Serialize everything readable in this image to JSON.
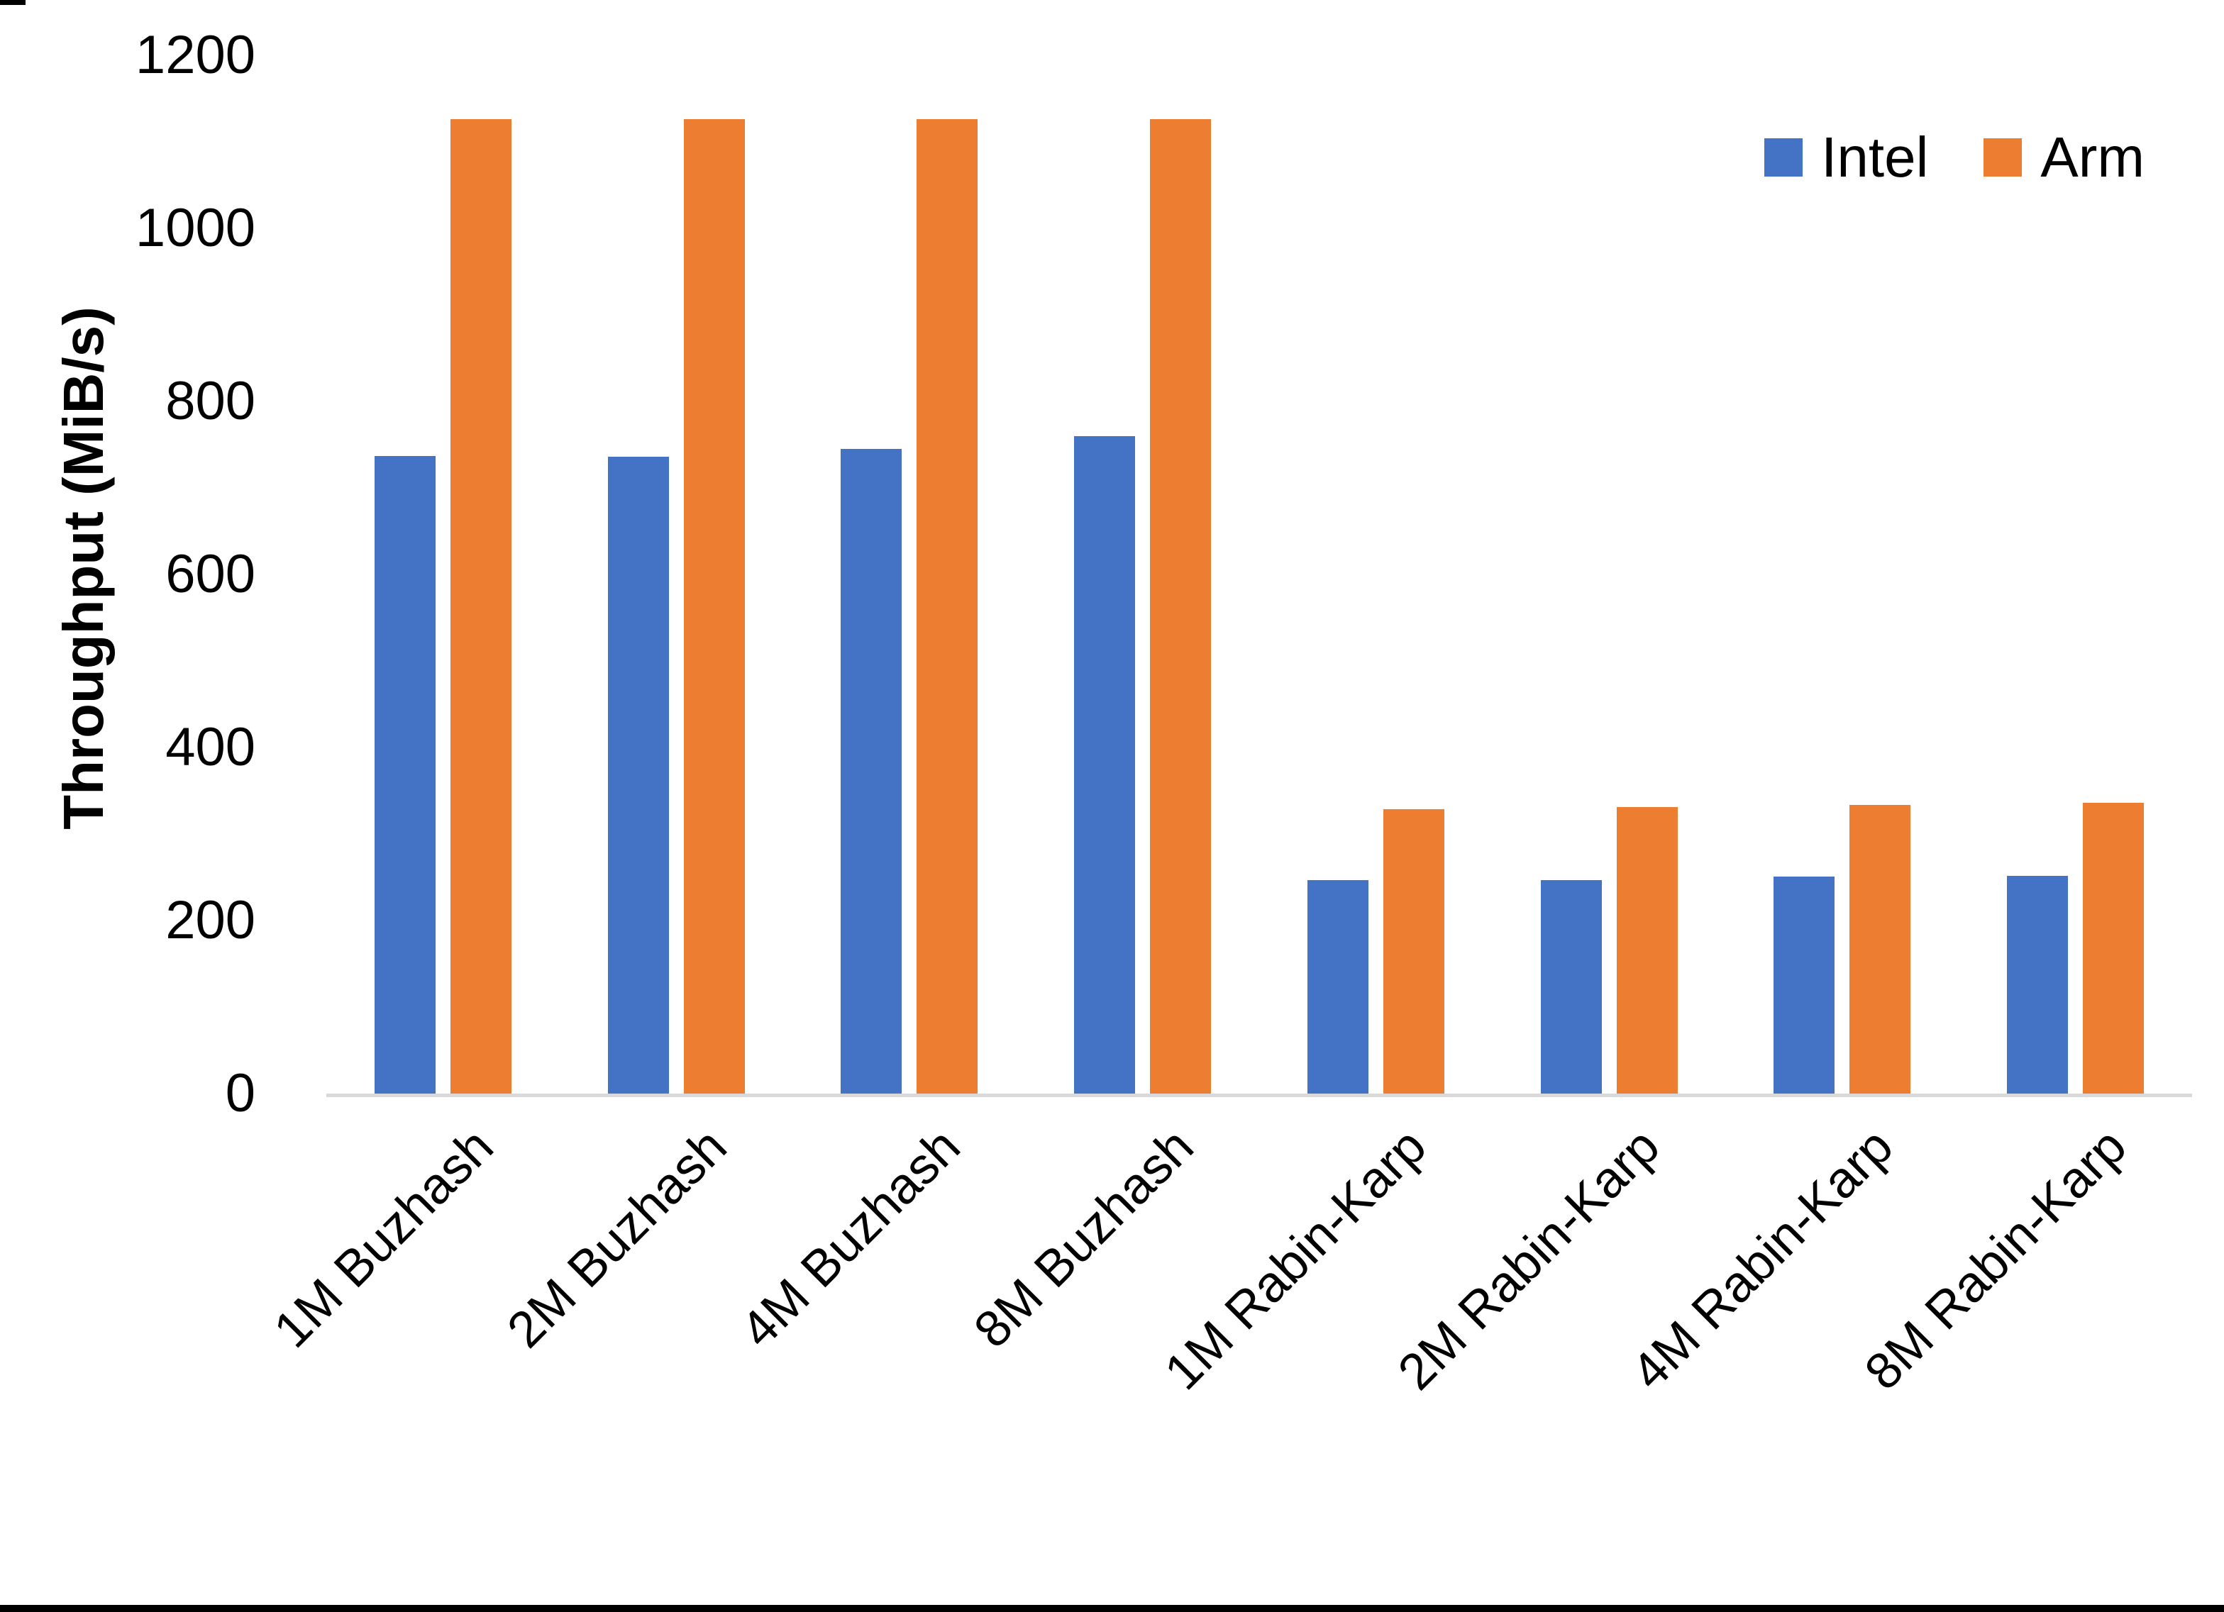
{
  "colors": {
    "background": "#ffffff",
    "axis_line": "#d9d9d9",
    "text": "#000000",
    "border_bar": "#000000",
    "intel": "#4472C4",
    "arm": "#ED7D31"
  },
  "legend": {
    "items": [
      {
        "label": "Intel",
        "color": "#4472C4"
      },
      {
        "label": "Arm",
        "color": "#ED7D31"
      }
    ]
  },
  "chart_data": {
    "type": "bar",
    "title": "",
    "xlabel": "",
    "ylabel": "Throughput (MiB/s)",
    "ylim": [
      0,
      1200
    ],
    "ytick_interval": 200,
    "yticks": [
      0,
      200,
      400,
      600,
      800,
      1000,
      1200
    ],
    "grid": false,
    "legend_position": "top-right",
    "categories": [
      "1M Buzhash",
      "2M Buzhash",
      "4M Buzhash",
      "8M Buzhash",
      "1M Rabin-Karp",
      "2M Rabin-Karp",
      "4M Rabin-Karp",
      "8M Rabin-Karp"
    ],
    "series": [
      {
        "name": "Intel",
        "color": "#4472C4",
        "values": [
          737,
          736,
          745,
          760,
          247,
          247,
          251,
          252
        ]
      },
      {
        "name": "Arm",
        "color": "#ED7D31",
        "values": [
          1126,
          1126,
          1126,
          1126,
          329,
          331,
          334,
          336
        ]
      }
    ]
  }
}
